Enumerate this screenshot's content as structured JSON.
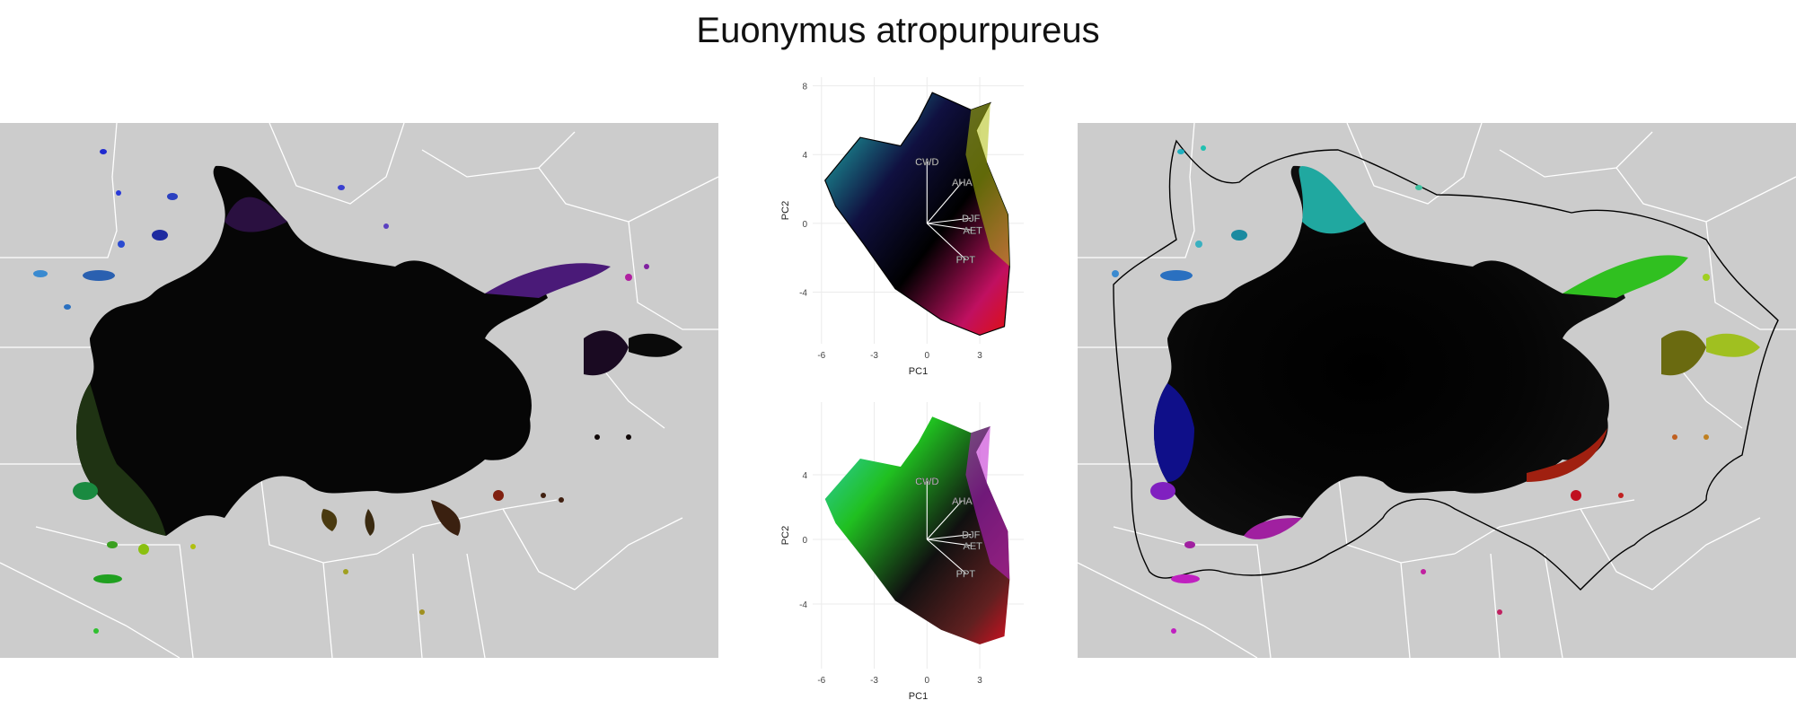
{
  "title": "Euonymus atropurpureus",
  "pca_plots": [
    {
      "id": "top",
      "xlabel": "PC1",
      "ylabel": "PC2",
      "x_ticks": [
        "-6",
        "-3",
        "0",
        "3"
      ],
      "y_ticks": [
        "8",
        "4",
        "0",
        "-4"
      ],
      "xlim": [
        -6.5,
        5.5
      ],
      "ylim": [
        -7,
        8.5
      ],
      "arrows": [
        {
          "label": "CWD",
          "x": 0.0,
          "y": 3.6
        },
        {
          "label": "AHA",
          "x": 2.0,
          "y": 2.4
        },
        {
          "label": "DJF",
          "x": 2.5,
          "y": 0.3
        },
        {
          "label": "AET",
          "x": 2.6,
          "y": -0.4
        },
        {
          "label": "PPT",
          "x": 2.2,
          "y": -2.1
        }
      ]
    },
    {
      "id": "bottom",
      "xlabel": "PC1",
      "ylabel": "PC2",
      "x_ticks": [
        "-6",
        "-3",
        "0",
        "3"
      ],
      "y_ticks": [
        "4",
        "0",
        "-4"
      ],
      "xlim": [
        -6.5,
        5.5
      ],
      "ylim": [
        -8,
        8.5
      ],
      "arrows": [
        {
          "label": "CWD",
          "x": 0.0,
          "y": 3.6
        },
        {
          "label": "AHA",
          "x": 2.0,
          "y": 2.4
        },
        {
          "label": "DJF",
          "x": 2.5,
          "y": 0.3
        },
        {
          "label": "AET",
          "x": 2.6,
          "y": -0.4
        },
        {
          "label": "PPT",
          "x": 2.2,
          "y": -2.1
        }
      ]
    }
  ],
  "colors": {
    "map_background": "#cccccc",
    "state_borders": "#ffffff",
    "hull_line": "#000000",
    "grid": "#ebebeb"
  }
}
